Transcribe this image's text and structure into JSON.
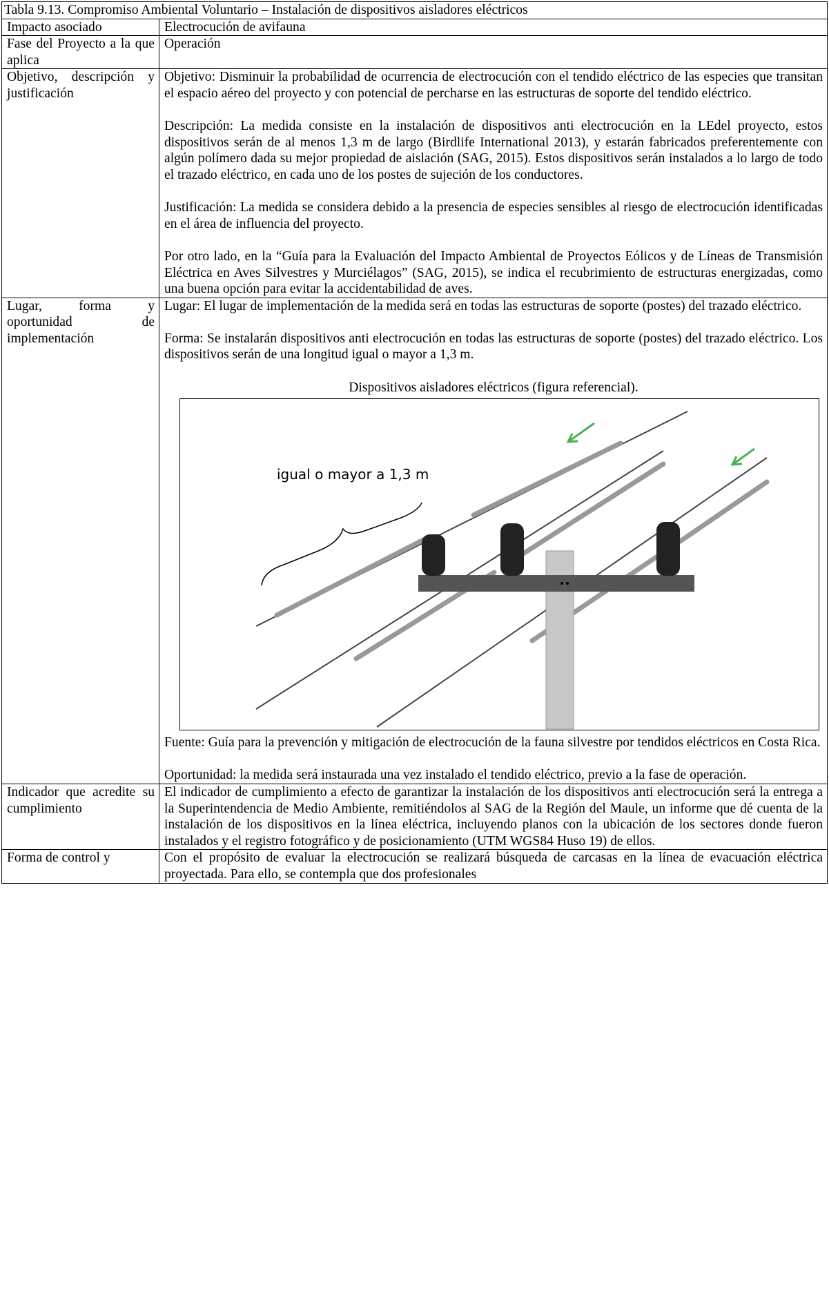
{
  "table": {
    "title": "Tabla  9.13. Compromiso Ambiental Voluntario – Instalación de dispositivos aisladores eléctricos",
    "rows": [
      {
        "label": "Impacto asociado",
        "paragraphs": [
          "Electrocución de avifauna"
        ]
      },
      {
        "label": "Fase del Proyecto a la que aplica",
        "paragraphs": [
          "Operación"
        ]
      },
      {
        "label": "Objetivo, descripción y justificación",
        "paragraphs": [
          "Objetivo: Disminuir la probabilidad de ocurrencia de electrocución con el tendido eléctrico de las especies que transitan el espacio aéreo del proyecto y con potencial de percharse en las estructuras de soporte del tendido eléctrico.",
          "Descripción: La medida consiste en la instalación de dispositivos anti electrocución en la LEdel proyecto, estos dispositivos serán de al menos 1,3 m de largo (Birdlife International 2013), y estarán fabricados preferentemente con algún polímero dada su mejor propiedad de aislación (SAG, 2015). Estos dispositivos serán instalados a lo largo de todo el trazado eléctrico, en cada uno de los postes de sujeción de los conductores.",
          "Justificación: La medida se considera debido a la presencia de especies sensibles al riesgo de electrocución identificadas en el área de influencia del proyecto.",
          "Por otro lado, en la “Guía para la Evaluación del Impacto Ambiental de Proyectos Eólicos y de Líneas de Transmisión Eléctrica en Aves Silvestres y Murciélagos” (SAG, 2015), se indica el recubrimiento de estructuras energizadas, como una buena opción para evitar la accidentabilidad de aves."
        ]
      },
      {
        "label": "Lugar, forma y oportunidad de implementación",
        "paragraphs": [
          "Lugar: El lugar de implementación de la medida será en todas las estructuras de soporte (postes) del trazado eléctrico.",
          "Forma: Se instalarán dispositivos anti electrocución en todas las estructuras de soporte (postes) del trazado eléctrico. Los dispositivos serán de una longitud igual o mayor a 1,3 m."
        ],
        "figure": {
          "caption": "Dispositivos aisladores eléctricos (figura referencial).",
          "image_label": "igual o mayor a 1,3 m",
          "source": "Fuente: Guía para la prevención y mitigación de electrocución de la fauna silvestre por tendidos eléctricos en Costa Rica."
        },
        "after": "Oportunidad: la medida será instaurada una vez instalado el tendido eléctrico, previo a la fase de operación."
      },
      {
        "label": "Indicador que acredite su cumplimiento",
        "paragraphs": [
          "El indicador de cumplimiento a efecto de garantizar la instalación de los dispositivos anti electrocución será la entrega a la Superintendencia de Medio Ambiente, remitiéndolos al SAG de la Región del Maule, un informe que dé cuenta de la instalación de los dispositivos en la línea eléctrica, incluyendo planos con la ubicación de los sectores donde fueron instalados y el registro fotográfico y de posicionamiento (UTM WGS84 Huso 19) de ellos."
        ]
      },
      {
        "label": "Forma de control y",
        "paragraphs": [
          "Con el propósito de evaluar la electrocución se realizará búsqueda de carcasas en la línea de evacuación eléctrica proyectada. Para ello, se contempla que dos profesionales"
        ]
      }
    ]
  }
}
